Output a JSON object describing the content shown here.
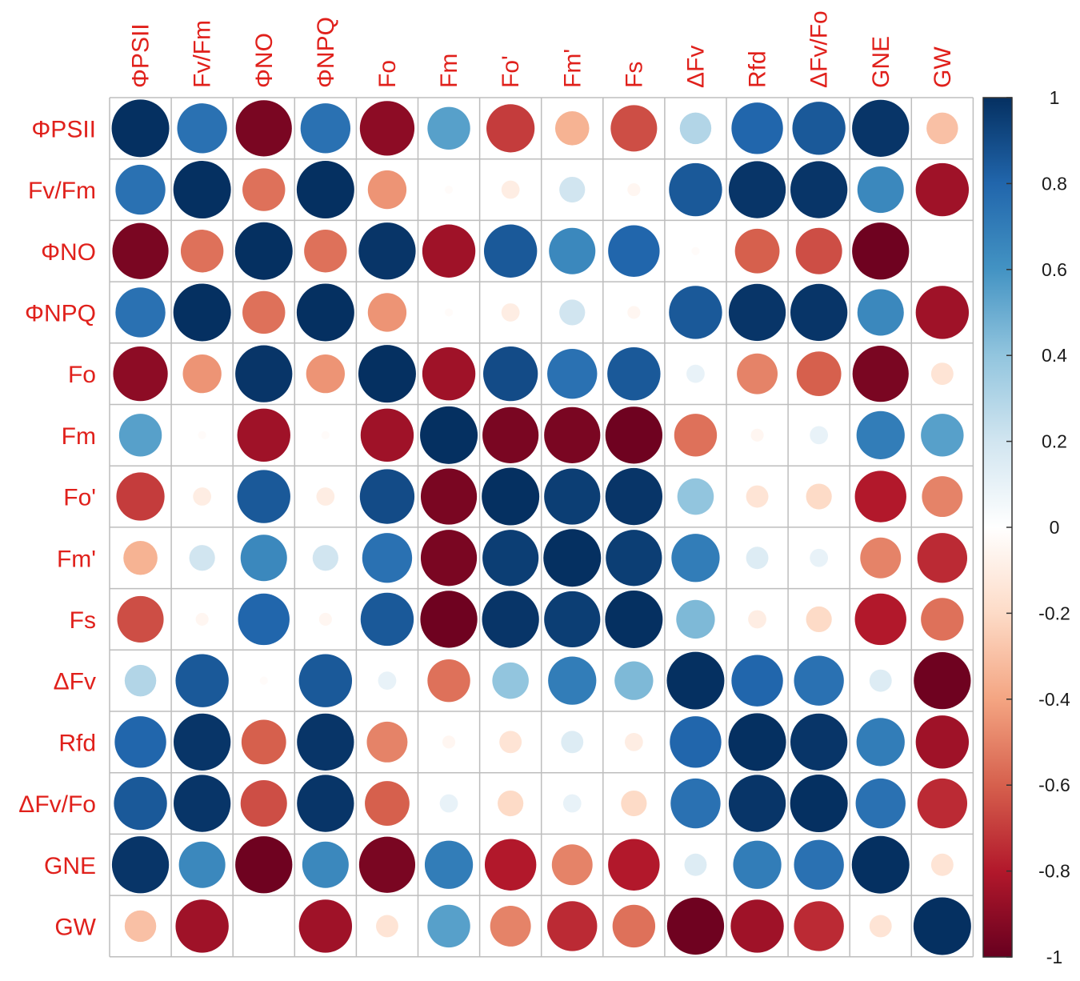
{
  "chart_data": {
    "type": "heatmap",
    "variables": [
      "ΦPSII",
      "Fv/Fm",
      "ΦNO",
      "ΦNPQ",
      "Fo",
      "Fm",
      "Fo'",
      "Fm'",
      "Fs",
      "ΔFv",
      "Rfd",
      "ΔFv/Fo",
      "GNE",
      "GW"
    ],
    "row_labels": [
      "ΦPSII",
      "Fv/Fm",
      "ΦNO",
      "ΦNPQ",
      "Fo",
      "Fm",
      "Fo'",
      "Fm'",
      "Fs",
      "ΔFv",
      "Rfd",
      "ΔFv/Fo",
      "GNE",
      "GW"
    ],
    "col_labels": [
      "ΦPSII",
      "Fv/Fm",
      "ΦNO",
      "ΦNPQ",
      "Fo",
      "Fm",
      "Fo'",
      "Fm'",
      "Fs",
      "ΔFv",
      "Rfd",
      "ΔFv/Fo",
      "GNE",
      "GW"
    ],
    "matrix": [
      [
        1.0,
        0.75,
        -0.95,
        0.75,
        -0.9,
        0.55,
        -0.7,
        -0.35,
        -0.65,
        0.3,
        0.8,
        0.85,
        0.98,
        -0.3
      ],
      [
        0.75,
        1.0,
        -0.55,
        1.0,
        -0.45,
        -0.02,
        -0.1,
        0.2,
        -0.05,
        0.85,
        0.98,
        0.98,
        0.65,
        -0.85
      ],
      [
        -0.95,
        -0.55,
        1.0,
        -0.55,
        0.98,
        -0.85,
        0.85,
        0.65,
        0.8,
        -0.02,
        -0.6,
        -0.65,
        -0.98,
        0.0
      ],
      [
        0.75,
        1.0,
        -0.55,
        1.0,
        -0.45,
        -0.02,
        -0.1,
        0.2,
        -0.05,
        0.85,
        0.98,
        0.98,
        0.65,
        -0.85
      ],
      [
        -0.9,
        -0.45,
        0.98,
        -0.45,
        1.0,
        -0.85,
        0.9,
        0.75,
        0.85,
        0.1,
        -0.5,
        -0.6,
        -0.95,
        -0.15
      ],
      [
        0.55,
        -0.02,
        -0.85,
        -0.02,
        -0.85,
        1.0,
        -0.95,
        -0.95,
        -0.98,
        -0.55,
        -0.05,
        0.1,
        0.7,
        0.55
      ],
      [
        -0.7,
        -0.1,
        0.85,
        -0.1,
        0.9,
        -0.95,
        1.0,
        0.95,
        0.98,
        0.4,
        -0.15,
        -0.2,
        -0.8,
        -0.5
      ],
      [
        -0.35,
        0.2,
        0.65,
        0.2,
        0.75,
        -0.95,
        0.95,
        1.0,
        0.95,
        0.7,
        0.15,
        0.1,
        -0.5,
        -0.75
      ],
      [
        -0.65,
        -0.05,
        0.8,
        -0.05,
        0.85,
        -0.98,
        0.98,
        0.95,
        1.0,
        0.45,
        -0.1,
        -0.2,
        -0.8,
        -0.55
      ],
      [
        0.3,
        0.85,
        -0.02,
        0.85,
        0.1,
        -0.55,
        0.4,
        0.7,
        0.45,
        1.0,
        0.8,
        0.75,
        0.15,
        -0.98
      ],
      [
        0.8,
        0.98,
        -0.6,
        0.98,
        -0.5,
        -0.05,
        -0.15,
        0.15,
        -0.1,
        0.8,
        1.0,
        0.98,
        0.7,
        -0.85
      ],
      [
        0.85,
        0.98,
        -0.65,
        0.98,
        -0.6,
        0.1,
        -0.2,
        0.1,
        -0.2,
        0.75,
        0.98,
        1.0,
        0.75,
        -0.75
      ],
      [
        0.98,
        0.65,
        -0.98,
        0.65,
        -0.95,
        0.7,
        -0.8,
        -0.5,
        -0.8,
        0.15,
        0.7,
        0.75,
        1.0,
        -0.15
      ],
      [
        -0.3,
        -0.85,
        0.0,
        -0.85,
        -0.15,
        0.55,
        -0.5,
        -0.75,
        -0.55,
        -0.98,
        -0.85,
        -0.75,
        -0.15,
        1.0
      ]
    ],
    "color_scale": {
      "min": -1,
      "max": 1,
      "ticks": [
        "1",
        "0.8",
        "0.6",
        "0.4",
        "0.2",
        "0",
        "-0.2",
        "-0.4",
        "-0.6",
        "-0.8",
        "-1"
      ],
      "ramp": [
        "#67001F",
        "#B2182B",
        "#D6604D",
        "#F4A582",
        "#FDDBC7",
        "#FFFFFF",
        "#D1E5F0",
        "#92C5DE",
        "#4393C3",
        "#2166AC",
        "#053061"
      ]
    },
    "label_color": "#E0201B",
    "grid_color": "#BDBDBD"
  }
}
